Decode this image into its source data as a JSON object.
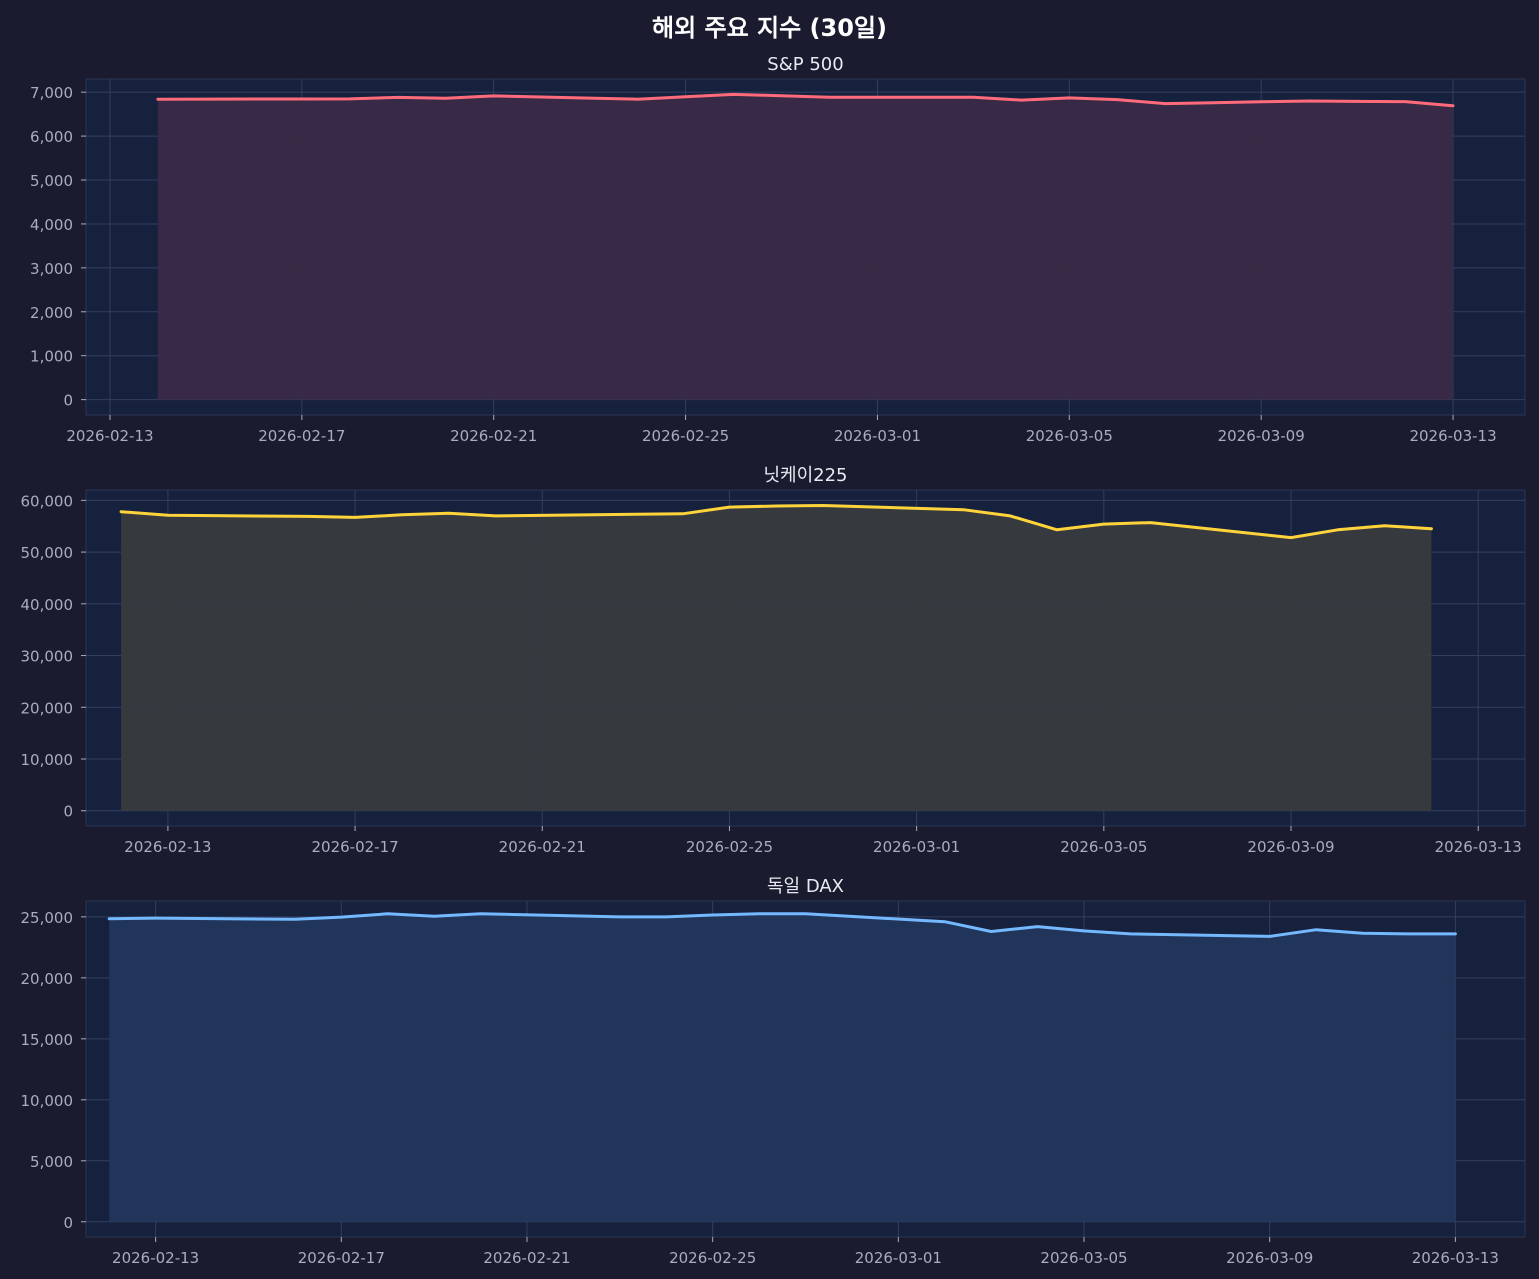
{
  "figure": {
    "title": "해외 주요 지수 (30일)",
    "background": "#1a1b2e",
    "axes_background": "#16213e",
    "grid_color": "#3b4466",
    "tick_color": "#a8adc0"
  },
  "chart_data": [
    {
      "type": "area",
      "title": "S&P 500",
      "color": "#ff6b7a",
      "fill": "#3a2b47",
      "grid": true,
      "ylim": [
        -350,
        7300
      ],
      "yticks": [
        0,
        1000,
        2000,
        3000,
        4000,
        5000,
        6000,
        7000
      ],
      "xlim": [
        "2026-02-12T12:00",
        "2026-03-14T12:00"
      ],
      "xticks": [
        "2026-02-13",
        "2026-02-17",
        "2026-02-21",
        "2026-02-25",
        "2026-03-01",
        "2026-03-05",
        "2026-03-09",
        "2026-03-13"
      ],
      "x": [
        "2026-02-14",
        "2026-02-16",
        "2026-02-17",
        "2026-02-18",
        "2026-02-19",
        "2026-02-20",
        "2026-02-21",
        "2026-02-22",
        "2026-02-23",
        "2026-02-24",
        "2026-02-25",
        "2026-02-26",
        "2026-02-27",
        "2026-02-28",
        "2026-03-01",
        "2026-03-02",
        "2026-03-03",
        "2026-03-04",
        "2026-03-05",
        "2026-03-06",
        "2026-03-07",
        "2026-03-08",
        "2026-03-09",
        "2026-03-10",
        "2026-03-11",
        "2026-03-12",
        "2026-03-13"
      ],
      "values": [
        6840,
        6845,
        6845,
        6848,
        6880,
        6860,
        6915,
        6890,
        6865,
        6840,
        6895,
        6950,
        6920,
        6885,
        6885,
        6885,
        6885,
        6820,
        6870,
        6830,
        6740,
        6760,
        6780,
        6800,
        6790,
        6785,
        6690
      ]
    },
    {
      "type": "area",
      "title": "닛케이225",
      "color": "#ffd43b",
      "fill": "#383b3e",
      "grid": true,
      "ylim": [
        -2950,
        62000
      ],
      "yticks": [
        0,
        10000,
        20000,
        30000,
        40000,
        50000,
        60000
      ],
      "xlim": [
        "2026-02-11T06:00",
        "2026-03-14T00:00"
      ],
      "xticks": [
        "2026-02-13",
        "2026-02-17",
        "2026-02-21",
        "2026-02-25",
        "2026-03-01",
        "2026-03-05",
        "2026-03-09",
        "2026-03-13"
      ],
      "x": [
        "2026-02-12",
        "2026-02-13",
        "2026-02-16",
        "2026-02-17",
        "2026-02-18",
        "2026-02-19",
        "2026-02-20",
        "2026-02-23",
        "2026-02-24",
        "2026-02-25",
        "2026-02-26",
        "2026-02-27",
        "2026-03-02",
        "2026-03-03",
        "2026-03-04",
        "2026-03-05",
        "2026-03-06",
        "2026-03-09",
        "2026-03-10",
        "2026-03-11",
        "2026-03-12"
      ],
      "values": [
        57800,
        57100,
        56900,
        56700,
        57200,
        57500,
        57000,
        57300,
        57400,
        58700,
        58900,
        59000,
        58200,
        57000,
        54300,
        55400,
        55700,
        52800,
        54300,
        55100,
        54500
      ]
    },
    {
      "type": "area",
      "title": "독일 DAX",
      "color": "#74b9ff",
      "fill": "#22375c",
      "grid": true,
      "ylim": [
        -1250,
        26300
      ],
      "yticks": [
        0,
        5000,
        10000,
        15000,
        20000,
        25000
      ],
      "xlim": [
        "2026-02-11T12:00",
        "2026-03-14T12:00"
      ],
      "xticks": [
        "2026-02-13",
        "2026-02-17",
        "2026-02-21",
        "2026-02-25",
        "2026-03-01",
        "2026-03-05",
        "2026-03-09",
        "2026-03-13"
      ],
      "x": [
        "2026-02-12",
        "2026-02-13",
        "2026-02-16",
        "2026-02-17",
        "2026-02-18",
        "2026-02-19",
        "2026-02-20",
        "2026-02-23",
        "2026-02-24",
        "2026-02-25",
        "2026-02-26",
        "2026-02-27",
        "2026-03-02",
        "2026-03-03",
        "2026-03-04",
        "2026-03-05",
        "2026-03-06",
        "2026-03-09",
        "2026-03-10",
        "2026-03-11",
        "2026-03-12",
        "2026-03-13"
      ],
      "values": [
        24850,
        24900,
        24800,
        24980,
        25250,
        25050,
        25250,
        25000,
        25000,
        25150,
        25250,
        25250,
        24600,
        23800,
        24200,
        23850,
        23600,
        23400,
        23950,
        23650,
        23600,
        23600
      ]
    }
  ]
}
